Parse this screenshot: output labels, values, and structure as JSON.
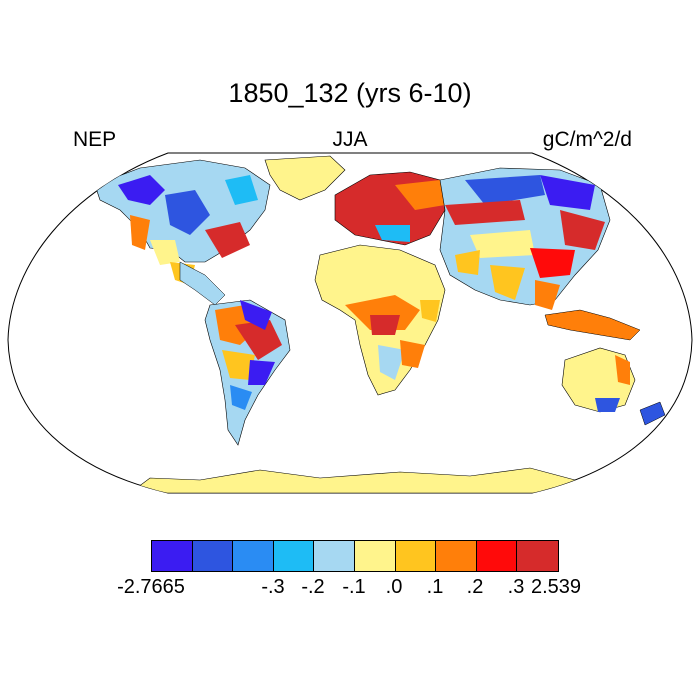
{
  "title": "1850_132 (yrs 6-10)",
  "left_label": "NEP",
  "center_label": "JJA",
  "right_label": "gC/m^2/d",
  "colorbar": {
    "colors": [
      "#3b1cf2",
      "#2e55e0",
      "#2a8cf3",
      "#1ebcf5",
      "#a6d8f2",
      "#fff48c",
      "#ffc51f",
      "#ff7f0a",
      "#ff0a0a",
      "#d62b2b"
    ],
    "labels": [
      "-2.7665",
      "-.3",
      "-.2",
      "-.1",
      ".0",
      ".1",
      ".2",
      ".3",
      "2.539"
    ]
  },
  "land_fill_color": "#fff48c"
}
